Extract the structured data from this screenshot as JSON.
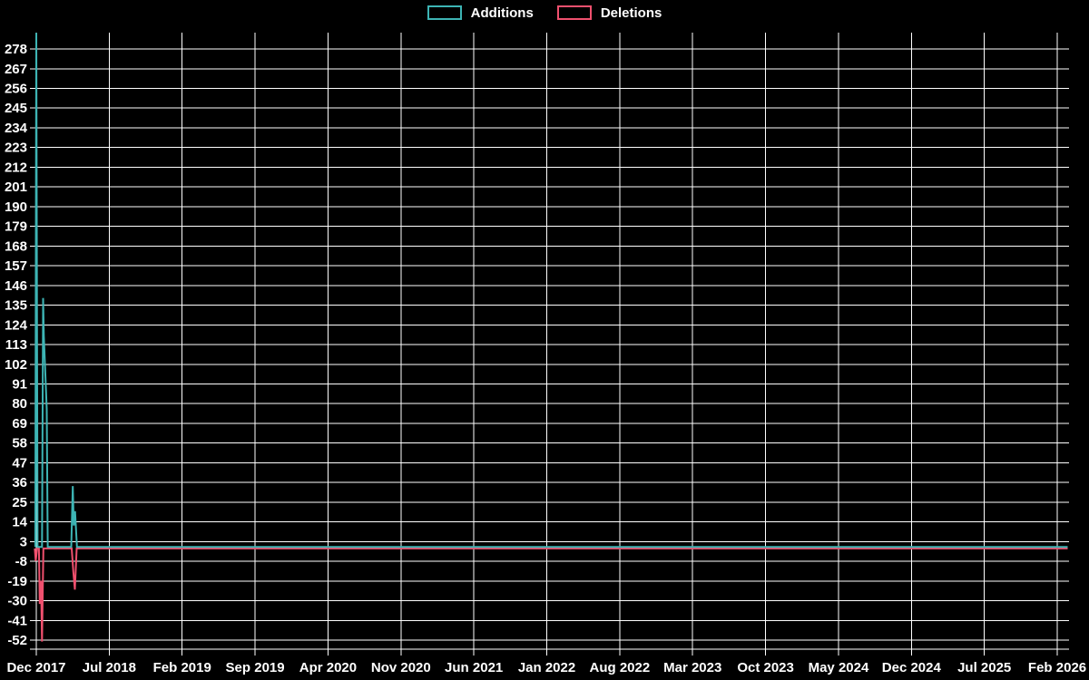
{
  "page": {
    "background": "#000000",
    "text_color": "#ffffff",
    "grid_color": "#ffffff"
  },
  "chart_data": {
    "type": "line",
    "title": "",
    "legend_position": "top-center",
    "grid": true,
    "background": "#000000",
    "grid_color": "#ffffff",
    "label_color": "#ffffff",
    "ylim": [
      -55,
      288
    ],
    "y_tick_step": 11,
    "y_ticks": [
      278,
      267,
      256,
      245,
      234,
      223,
      212,
      201,
      190,
      179,
      168,
      157,
      146,
      135,
      124,
      113,
      102,
      91,
      80,
      69,
      58,
      47,
      36,
      25,
      14,
      3,
      -8,
      -19,
      -30,
      -41,
      -52
    ],
    "x_tick_labels": [
      "Dec 2017",
      "Jul 2018",
      "Feb 2019",
      "Sep 2019",
      "Apr 2020",
      "Nov 2020",
      "Jun 2021",
      "Jan 2022",
      "Aug 2022",
      "Mar 2023",
      "Oct 2023",
      "May 2024",
      "Dec 2024",
      "Jul 2025",
      "Feb 2026"
    ],
    "x_unit": "months since Dec 2017",
    "x_tick_month_step": 7,
    "xlim_months": [
      -0.35,
      99.1
    ],
    "series": [
      {
        "name": "Deletions",
        "color": "#f0506e",
        "points": [
          [
            -0.15,
            0
          ],
          [
            -0.05,
            -7
          ],
          [
            0.08,
            0
          ],
          [
            0.25,
            0
          ],
          [
            0.33,
            -31
          ],
          [
            0.45,
            -18
          ],
          [
            0.55,
            -52
          ],
          [
            0.68,
            0
          ],
          [
            3.4,
            0
          ],
          [
            3.55,
            -13
          ],
          [
            3.7,
            -23
          ],
          [
            3.88,
            0
          ],
          [
            99.0,
            0
          ]
        ]
      },
      {
        "name": "Additions",
        "color": "#3db4b4",
        "points": [
          [
            -0.1,
            0
          ],
          [
            0.0,
            287
          ],
          [
            0.12,
            0
          ],
          [
            0.55,
            0
          ],
          [
            0.65,
            139
          ],
          [
            0.72,
            118
          ],
          [
            0.88,
            95
          ],
          [
            1.0,
            77
          ],
          [
            1.1,
            0
          ],
          [
            3.35,
            0
          ],
          [
            3.5,
            34
          ],
          [
            3.6,
            12
          ],
          [
            3.72,
            20
          ],
          [
            3.9,
            0
          ],
          [
            99.0,
            0
          ]
        ]
      }
    ]
  }
}
